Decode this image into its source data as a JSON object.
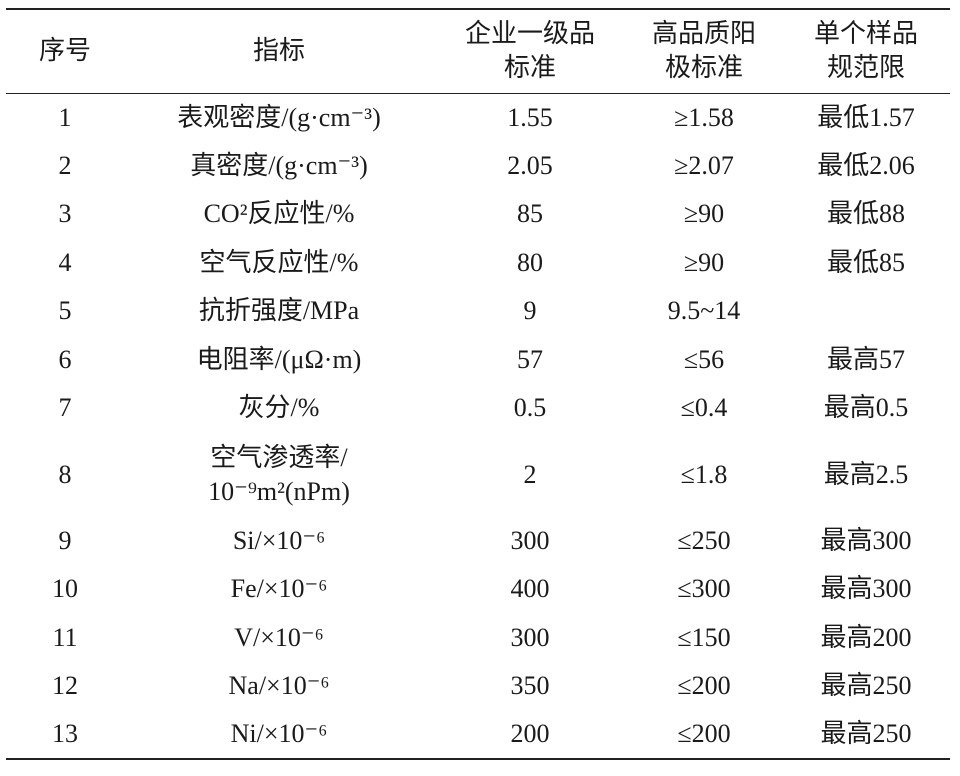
{
  "table": {
    "header": [
      "序号",
      "指标",
      "企业一级品\n标准",
      "高品质阳\n极标准",
      "单个样品\n规范限"
    ],
    "rows": [
      [
        "1",
        "表观密度/(g·cm⁻³)",
        "1.55",
        "≥1.58",
        "最低1.57"
      ],
      [
        "2",
        "真密度/(g·cm⁻³)",
        "2.05",
        "≥2.07",
        "最低2.06"
      ],
      [
        "3",
        "CO²反应性/%",
        "85",
        "≥90",
        "最低88"
      ],
      [
        "4",
        "空气反应性/%",
        "80",
        "≥90",
        "最低85"
      ],
      [
        "5",
        "抗折强度/MPa",
        "9",
        "9.5~14",
        null
      ],
      [
        "6",
        "电阻率/(μΩ·m)",
        "57",
        "≤56",
        "最高57"
      ],
      [
        "7",
        "灰分/%",
        "0.5",
        "≤0.4",
        "最高0.5"
      ],
      [
        "8",
        "空气渗透率/\n10⁻⁹m²(nPm)",
        "2",
        "≤1.8",
        "最高2.5"
      ],
      [
        "9",
        "Si/×10⁻⁶",
        "300",
        "≤250",
        "最高300"
      ],
      [
        "10",
        "Fe/×10⁻⁶",
        "400",
        "≤300",
        "最高300"
      ],
      [
        "11",
        "V/×10⁻⁶",
        "300",
        "≤150",
        "最高200"
      ],
      [
        "12",
        "Na/×10⁻⁶",
        "350",
        "≤200",
        "最高250"
      ],
      [
        "13",
        "Ni/×10⁻⁶",
        "200",
        "≤200",
        "最高250"
      ]
    ]
  }
}
